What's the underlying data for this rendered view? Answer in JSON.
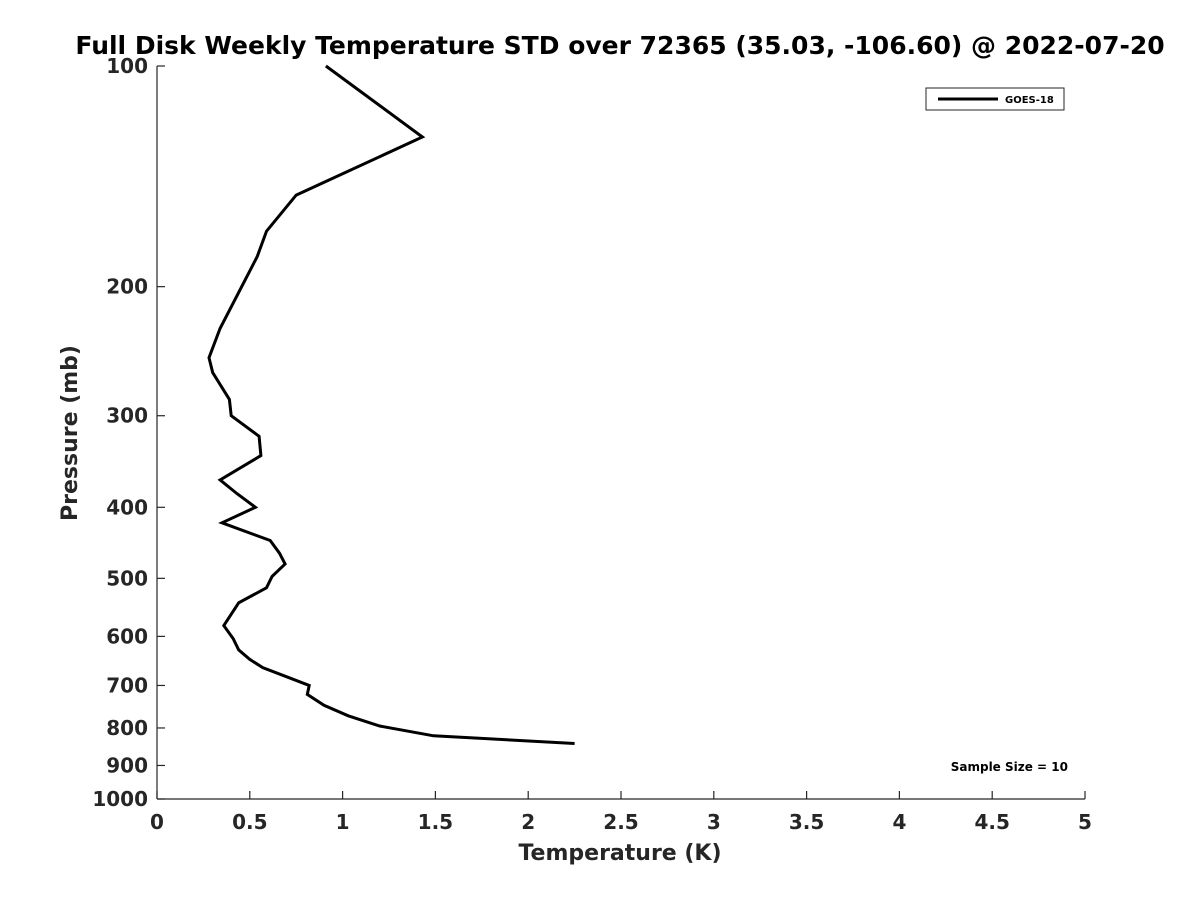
{
  "chart_data": {
    "type": "line",
    "title": "Full Disk Weekly Temperature STD over 72365 (35.03, -106.60) @ 2022-07-20",
    "xlabel": "Temperature (K)",
    "ylabel": "Pressure (mb)",
    "xlim": [
      0,
      5
    ],
    "ylim": [
      100,
      1000
    ],
    "y_scale": "log",
    "y_inverted": true,
    "grid": false,
    "legend_position": "top-right",
    "x_ticks": [
      "0",
      "0.5",
      "1",
      "1.5",
      "2",
      "2.5",
      "3",
      "3.5",
      "4",
      "4.5",
      "5"
    ],
    "y_ticks": [
      "100",
      "200",
      "300",
      "400",
      "500",
      "600",
      "700",
      "800",
      "900",
      "1000"
    ],
    "annotation": "Sample Size = 10",
    "series": [
      {
        "name": "GOES-18",
        "color": "#000000",
        "points": [
          {
            "x": 0.91,
            "y": 100
          },
          {
            "x": 1.43,
            "y": 125
          },
          {
            "x": 0.75,
            "y": 150
          },
          {
            "x": 0.59,
            "y": 168
          },
          {
            "x": 0.54,
            "y": 182
          },
          {
            "x": 0.34,
            "y": 228
          },
          {
            "x": 0.28,
            "y": 250
          },
          {
            "x": 0.3,
            "y": 262
          },
          {
            "x": 0.39,
            "y": 285
          },
          {
            "x": 0.4,
            "y": 300
          },
          {
            "x": 0.55,
            "y": 320
          },
          {
            "x": 0.56,
            "y": 340
          },
          {
            "x": 0.34,
            "y": 367
          },
          {
            "x": 0.43,
            "y": 383
          },
          {
            "x": 0.53,
            "y": 400
          },
          {
            "x": 0.35,
            "y": 420
          },
          {
            "x": 0.61,
            "y": 444
          },
          {
            "x": 0.66,
            "y": 462
          },
          {
            "x": 0.69,
            "y": 478
          },
          {
            "x": 0.62,
            "y": 497
          },
          {
            "x": 0.59,
            "y": 515
          },
          {
            "x": 0.44,
            "y": 540
          },
          {
            "x": 0.36,
            "y": 580
          },
          {
            "x": 0.41,
            "y": 604
          },
          {
            "x": 0.44,
            "y": 626
          },
          {
            "x": 0.5,
            "y": 645
          },
          {
            "x": 0.57,
            "y": 662
          },
          {
            "x": 0.69,
            "y": 680
          },
          {
            "x": 0.82,
            "y": 700
          },
          {
            "x": 0.81,
            "y": 720
          },
          {
            "x": 0.9,
            "y": 745
          },
          {
            "x": 1.03,
            "y": 770
          },
          {
            "x": 1.2,
            "y": 795
          },
          {
            "x": 1.49,
            "y": 820
          },
          {
            "x": 2.25,
            "y": 840
          }
        ]
      }
    ]
  }
}
